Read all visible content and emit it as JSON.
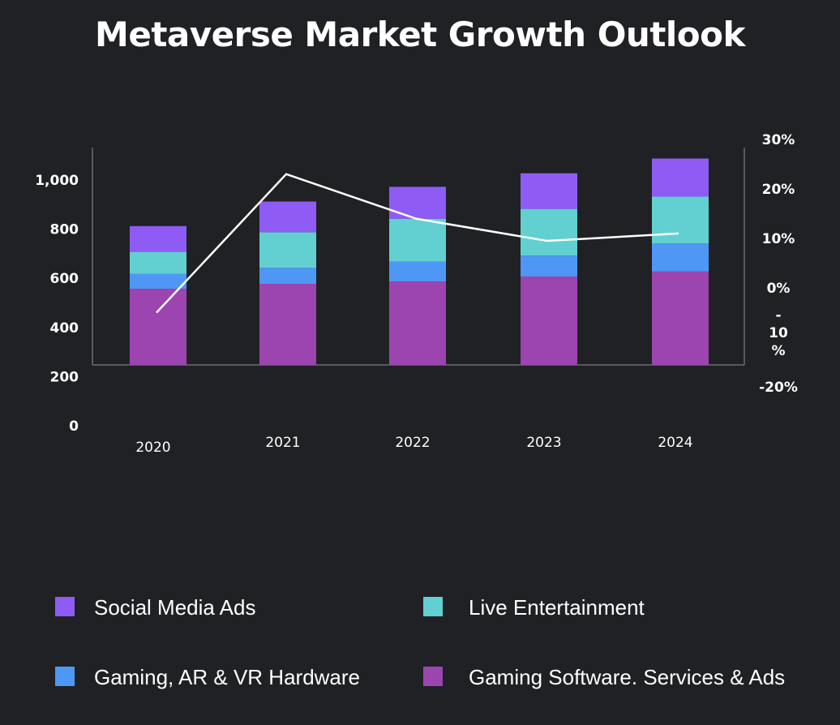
{
  "chart_data": {
    "type": "bar",
    "stacked": true,
    "title": "Metaverse Market Growth Outlook",
    "categories": [
      "2020",
      "2021",
      "2022",
      "2023",
      "2024"
    ],
    "y_left_ticks": [
      "0",
      "200",
      "400",
      "600",
      "800",
      "1,000"
    ],
    "y_left_range": [
      0,
      1000
    ],
    "y_right_ticks": [
      "-20%",
      "- 10 %",
      "0%",
      "10%",
      "20%",
      "30%"
    ],
    "y_right_range": [
      -20,
      30
    ],
    "series": [
      {
        "name": "Gaming Software. Services & Ads",
        "color": "#9c44b0",
        "values": [
          310,
          330,
          340,
          360,
          380
        ]
      },
      {
        "name": "Gaming, AR & VR Hardware",
        "color": "#4f97f5",
        "values": [
          60,
          65,
          80,
          85,
          115
        ]
      },
      {
        "name": "Live Entertainment",
        "color": "#62cfd0",
        "values": [
          90,
          145,
          175,
          190,
          190
        ]
      },
      {
        "name": "Social Media Ads",
        "color": "#8e5cf4",
        "values": [
          105,
          125,
          130,
          145,
          155
        ]
      }
    ],
    "growth_line": {
      "color": "#ffffff",
      "values": [
        -5,
        23,
        14,
        9.5,
        11
      ]
    },
    "grid": false,
    "legend_position": "bottom"
  },
  "legend": [
    {
      "label": "Social Media Ads",
      "color": "#8e5cf4"
    },
    {
      "label": "Live Entertainment",
      "color": "#62cfd0"
    },
    {
      "label": "Gaming, AR & VR Hardware",
      "color": "#4f97f5"
    },
    {
      "label": "Gaming Software. Services & Ads",
      "color": "#9c44b0"
    }
  ]
}
